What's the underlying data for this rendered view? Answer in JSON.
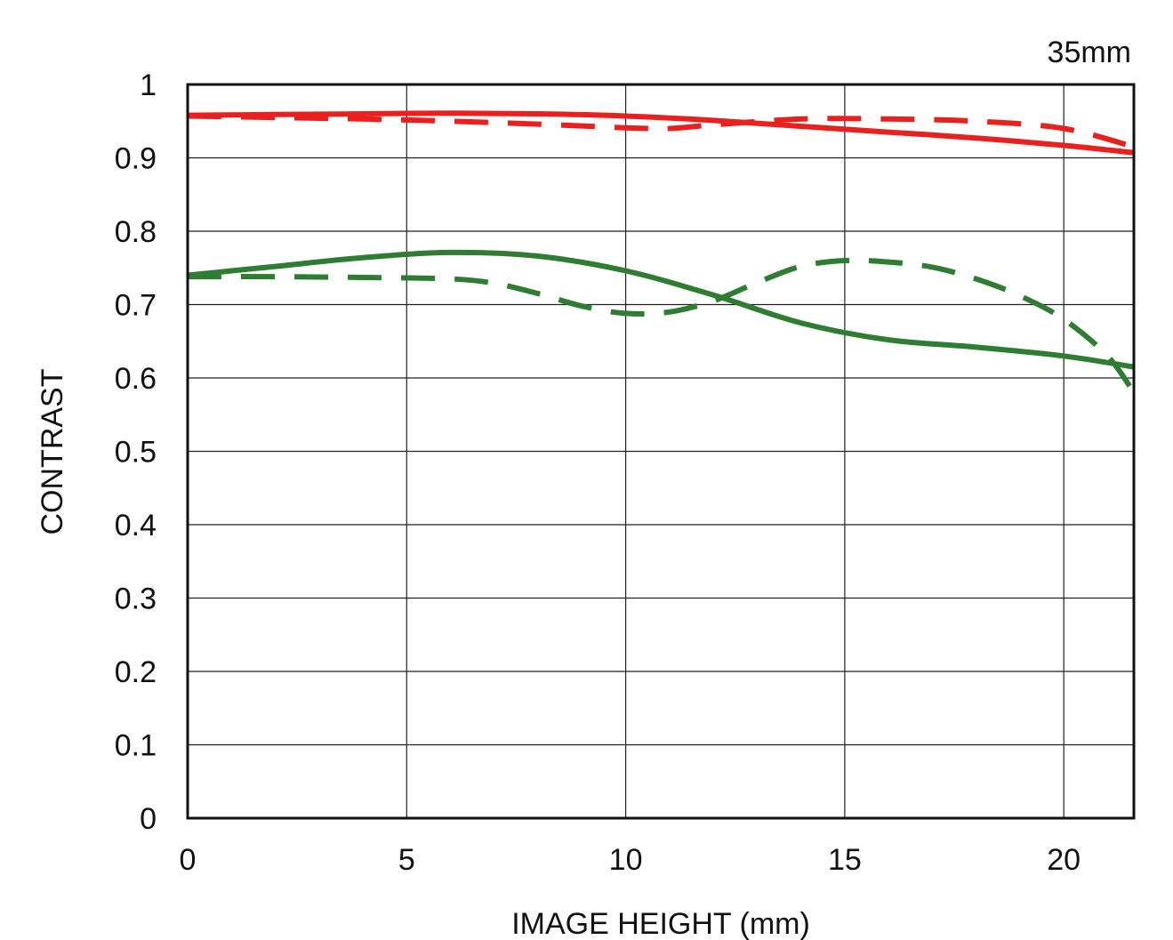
{
  "chart_data": {
    "type": "line",
    "title": "35mm",
    "xlabel": "IMAGE HEIGHT (mm)",
    "ylabel": "CONTRAST",
    "xlim": [
      0,
      21.6
    ],
    "ylim": [
      0,
      1
    ],
    "xticks": [
      "0",
      "5",
      "10",
      "15",
      "20"
    ],
    "yticks": [
      "0",
      "0.1",
      "0.2",
      "0.3",
      "0.4",
      "0.5",
      "0.6",
      "0.7",
      "0.8",
      "0.9",
      "1"
    ],
    "grid": true,
    "colors": {
      "red": "#e8211f",
      "green": "#2e7d32"
    },
    "series": [
      {
        "color": "#e8211f",
        "dash": false,
        "x": [
          0,
          2,
          4,
          6,
          8,
          10,
          12,
          14,
          16,
          18,
          20,
          21.6
        ],
        "y": [
          0.958,
          0.959,
          0.96,
          0.961,
          0.96,
          0.957,
          0.951,
          0.943,
          0.935,
          0.927,
          0.917,
          0.907
        ]
      },
      {
        "color": "#e8211f",
        "dash": true,
        "x": [
          0,
          2,
          4,
          6,
          8,
          10,
          11,
          12,
          14,
          16,
          18,
          20,
          21.6
        ],
        "y": [
          0.957,
          0.955,
          0.953,
          0.95,
          0.946,
          0.941,
          0.94,
          0.945,
          0.953,
          0.953,
          0.95,
          0.94,
          0.915
        ]
      },
      {
        "color": "#2e7d32",
        "dash": false,
        "x": [
          0,
          2,
          4,
          6,
          8,
          10,
          12,
          14,
          16,
          18,
          20,
          21.6
        ],
        "y": [
          0.74,
          0.752,
          0.764,
          0.771,
          0.766,
          0.746,
          0.713,
          0.675,
          0.652,
          0.642,
          0.63,
          0.615
        ]
      },
      {
        "color": "#2e7d32",
        "dash": true,
        "x": [
          0,
          2,
          4,
          6,
          7,
          8,
          9,
          10,
          11,
          12,
          13,
          14,
          15,
          16,
          17,
          18,
          19,
          20,
          21,
          21.6
        ],
        "y": [
          0.738,
          0.738,
          0.737,
          0.735,
          0.729,
          0.715,
          0.698,
          0.688,
          0.69,
          0.705,
          0.73,
          0.752,
          0.76,
          0.758,
          0.751,
          0.735,
          0.712,
          0.68,
          0.63,
          0.58
        ]
      }
    ]
  }
}
